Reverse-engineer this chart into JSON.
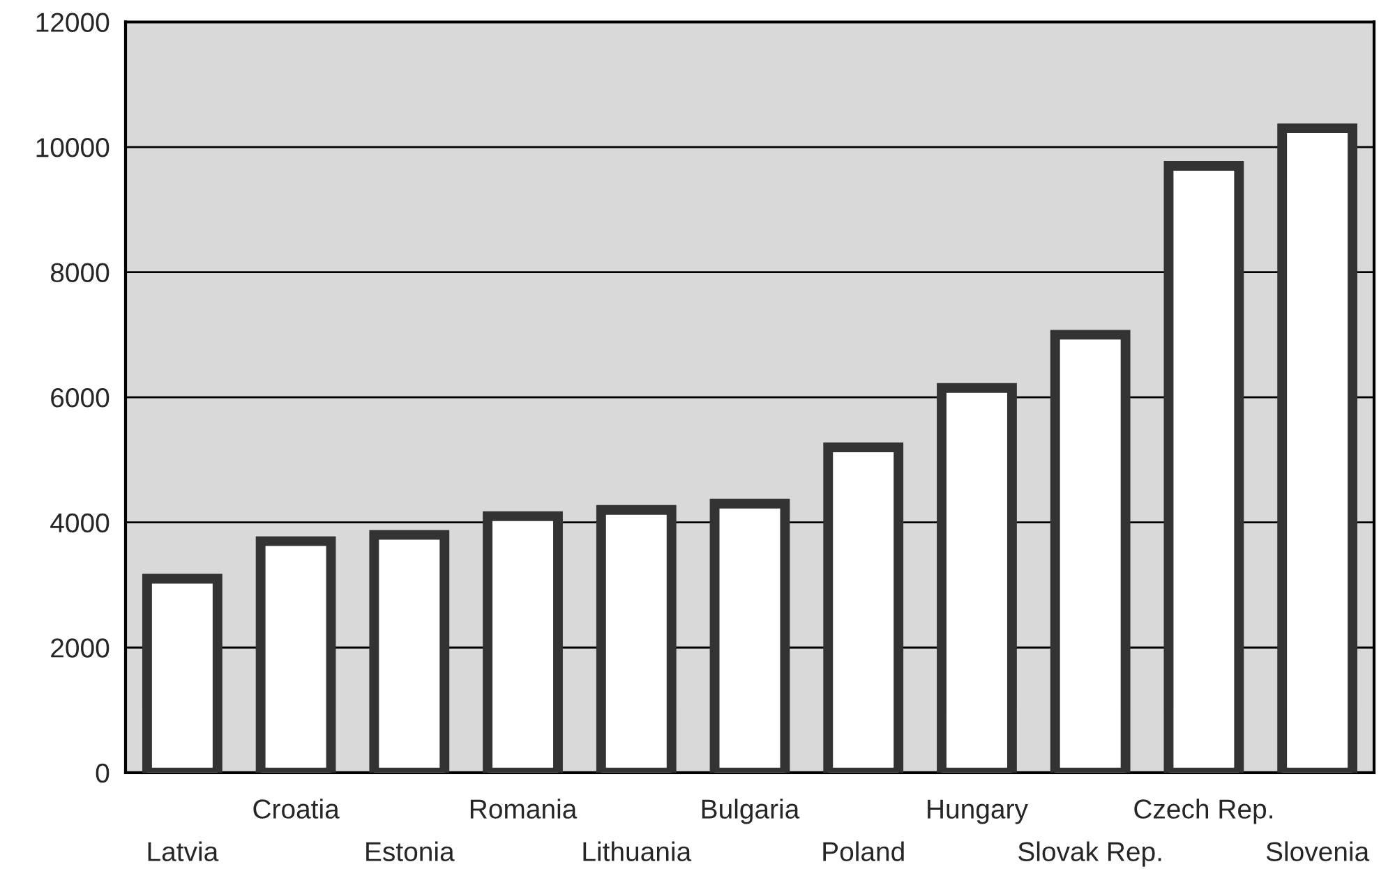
{
  "chart_data": {
    "type": "bar",
    "categories": [
      "Latvia",
      "Croatia",
      "Estonia",
      "Romania",
      "Lithuania",
      "Bulgaria",
      "Poland",
      "Hungary",
      "Slovak Rep.",
      "Czech Rep.",
      "Slovenia"
    ],
    "values": [
      3100,
      3700,
      3800,
      4100,
      4200,
      4300,
      5200,
      6150,
      7000,
      9700,
      10300
    ],
    "color": "#ffffff",
    "ylim": [
      0,
      12000
    ],
    "yticks": [
      0,
      2000,
      4000,
      6000,
      8000,
      10000,
      12000
    ],
    "grid": "y"
  }
}
